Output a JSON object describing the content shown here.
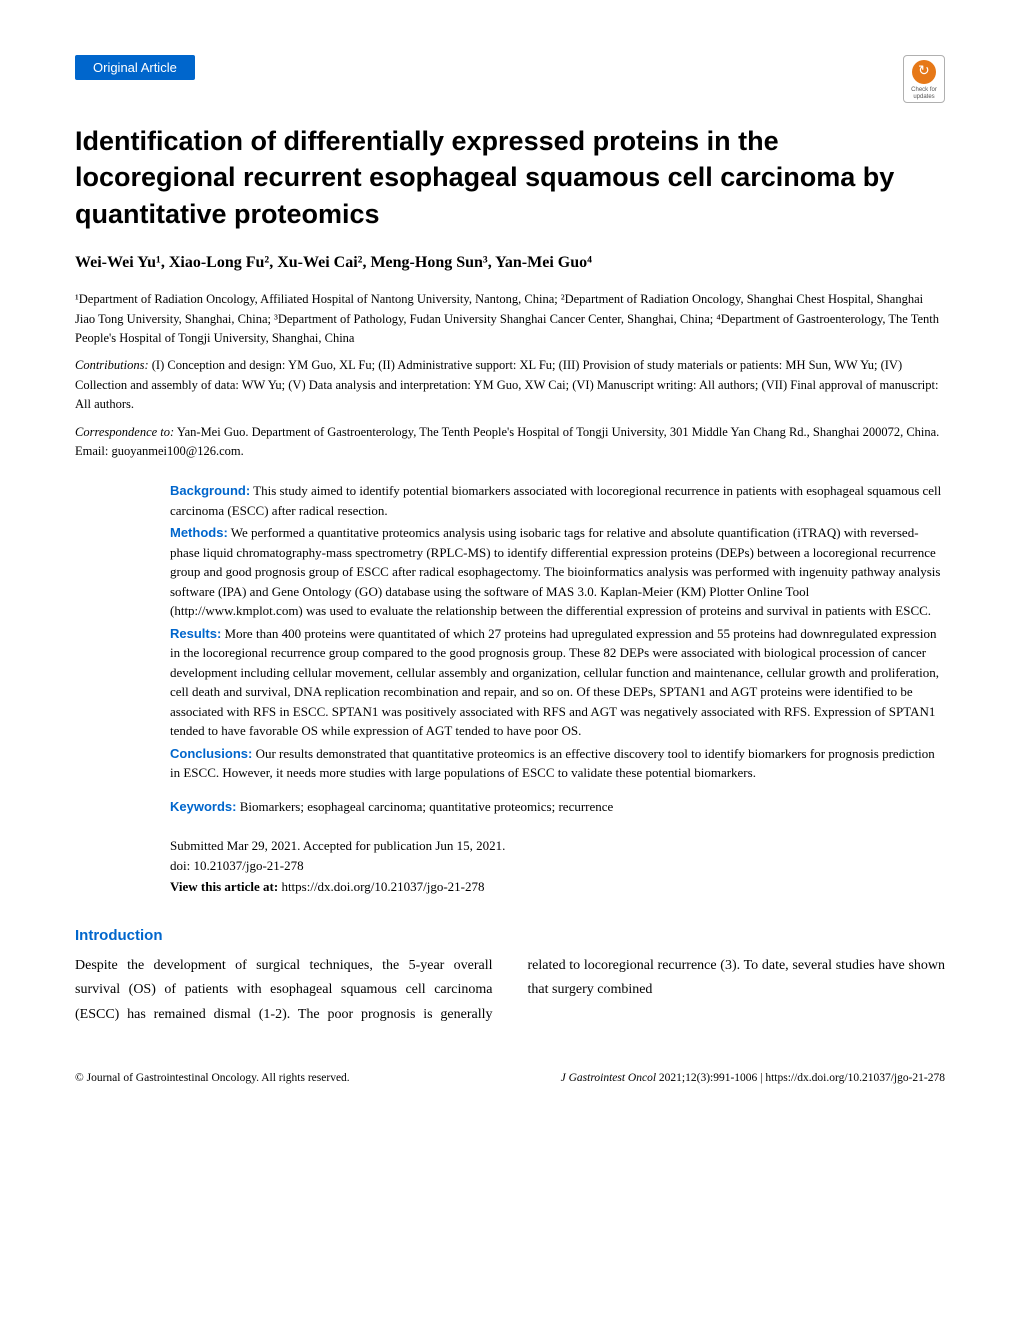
{
  "header": {
    "badge": "Original Article",
    "check_updates": "Check for updates"
  },
  "title": "Identification of differentially expressed proteins in the locoregional recurrent esophageal squamous cell carcinoma by quantitative proteomics",
  "authors": "Wei-Wei Yu¹, Xiao-Long Fu², Xu-Wei Cai², Meng-Hong Sun³, Yan-Mei Guo⁴",
  "affiliations": "¹Department of Radiation Oncology, Affiliated Hospital of Nantong University, Nantong, China; ²Department of Radiation Oncology, Shanghai Chest Hospital, Shanghai Jiao Tong University, Shanghai, China; ³Department of Pathology, Fudan University Shanghai Cancer Center, Shanghai, China; ⁴Department of Gastroenterology, The Tenth People's Hospital of Tongji University, Shanghai, China",
  "contributions": {
    "label": "Contributions:",
    "text": " (I) Conception and design: YM Guo, XL Fu; (II) Administrative support: XL Fu; (III) Provision of study materials or patients: MH Sun, WW Yu; (IV) Collection and assembly of data: WW Yu; (V) Data analysis and interpretation: YM Guo, XW Cai; (VI) Manuscript writing: All authors; (VII) Final approval of manuscript: All authors."
  },
  "correspondence": {
    "label": "Correspondence to:",
    "text": " Yan-Mei Guo. Department of Gastroenterology, The Tenth People's Hospital of Tongji University, 301 Middle Yan Chang Rd., Shanghai 200072, China. Email: guoyanmei100@126.com."
  },
  "abstract": {
    "background": {
      "label": "Background:",
      "text": " This study aimed to identify potential biomarkers associated with locoregional recurrence in patients with esophageal squamous cell carcinoma (ESCC) after radical resection."
    },
    "methods": {
      "label": "Methods:",
      "text": " We performed a quantitative proteomics analysis using isobaric tags for relative and absolute quantification (iTRAQ) with reversed-phase liquid chromatography-mass spectrometry (RPLC-MS) to identify differential expression proteins (DEPs) between a locoregional recurrence group and good prognosis group of ESCC after radical esophagectomy. The bioinformatics analysis was performed with ingenuity pathway analysis software (IPA) and Gene Ontology (GO) database using the software of MAS 3.0. Kaplan-Meier (KM) Plotter Online Tool (http://www.kmplot.com) was used to evaluate the relationship between the differential expression of proteins and survival in patients with ESCC."
    },
    "results": {
      "label": "Results:",
      "text": " More than 400 proteins were quantitated of which 27 proteins had upregulated expression and 55 proteins had downregulated expression in the locoregional recurrence group compared to the good prognosis group. These 82 DEPs were associated with biological procession of cancer development including cellular movement, cellular assembly and organization, cellular function and maintenance, cellular growth and proliferation, cell death and survival, DNA replication recombination and repair, and so on. Of these DEPs, SPTAN1 and AGT proteins were identified to be associated with RFS in ESCC. SPTAN1 was positively associated with RFS and AGT was negatively associated with RFS. Expression of SPTAN1 tended to have favorable OS while expression of AGT tended to have poor OS."
    },
    "conclusions": {
      "label": "Conclusions:",
      "text": " Our results demonstrated that quantitative proteomics is an effective discovery tool to identify biomarkers for prognosis prediction in ESCC. However, it needs more studies with large populations of ESCC to validate these potential biomarkers."
    },
    "keywords": {
      "label": "Keywords:",
      "text": " Biomarkers; esophageal carcinoma; quantitative proteomics; recurrence"
    }
  },
  "submitted": {
    "line1": "Submitted Mar 29, 2021. Accepted for publication Jun 15, 2021.",
    "line2": "doi: 10.21037/jgo-21-278",
    "view_label": "View this article at:",
    "view_url": " https://dx.doi.org/10.21037/jgo-21-278"
  },
  "introduction": {
    "heading": "Introduction",
    "text": "Despite the development of surgical techniques, the 5-year overall survival (OS) of patients with esophageal squamous cell carcinoma (ESCC) has remained dismal (1-2). The poor prognosis is generally related to locoregional recurrence (3). To date, several studies have shown that surgery combined"
  },
  "footer": {
    "left": "© Journal of Gastrointestinal Oncology. All rights reserved.",
    "right_journal": "J Gastrointest Oncol",
    "right_citation": " 2021;12(3):991-1006 | https://dx.doi.org/10.21037/jgo-21-278"
  }
}
